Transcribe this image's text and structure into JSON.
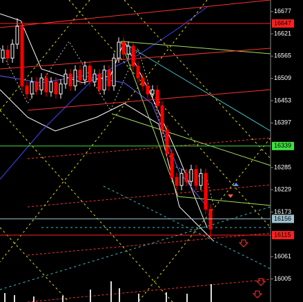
{
  "chart_data": {
    "type": "candlestick",
    "open": [
      16560,
      16580,
      16560,
      16595,
      16640,
      16490,
      16470,
      16500,
      16480,
      16510,
      16475,
      16500,
      16470,
      16495,
      16520,
      16490,
      16530,
      16505,
      16540,
      16500,
      16520,
      16480,
      16530,
      16490,
      16560,
      16600,
      16570,
      16590,
      16540,
      16510,
      16490,
      16470,
      16480,
      16440,
      16380,
      16320,
      16260,
      16240,
      16270,
      16250,
      16280,
      16240,
      16270,
      16180
    ],
    "high": [
      16592,
      16592,
      16607,
      16660,
      16652,
      16502,
      16512,
      16512,
      16522,
      16522,
      16512,
      16512,
      16507,
      16532,
      16532,
      16542,
      16542,
      16552,
      16552,
      16532,
      16532,
      16542,
      16542,
      16572,
      16612,
      16612,
      16602,
      16602,
      16552,
      16522,
      16502,
      16492,
      16492,
      16452,
      16392,
      16332,
      16272,
      16282,
      16282,
      16292,
      16292,
      16282,
      16282,
      16192
    ],
    "low": [
      16548,
      16548,
      16548,
      16583,
      16478,
      16458,
      16458,
      16468,
      16468,
      16463,
      16463,
      16458,
      16458,
      16483,
      16478,
      16478,
      16493,
      16493,
      16488,
      16488,
      16468,
      16468,
      16478,
      16478,
      16548,
      16558,
      16558,
      16528,
      16498,
      16478,
      16458,
      16458,
      16428,
      16368,
      16308,
      16248,
      16228,
      16228,
      16238,
      16238,
      16228,
      16228,
      16168,
      16108
    ],
    "close": [
      16580,
      16560,
      16595,
      16640,
      16490,
      16470,
      16500,
      16480,
      16510,
      16475,
      16500,
      16470,
      16495,
      16520,
      16490,
      16530,
      16505,
      16540,
      16500,
      16520,
      16480,
      16530,
      16490,
      16560,
      16600,
      16570,
      16590,
      16540,
      16510,
      16490,
      16470,
      16480,
      16440,
      16380,
      16320,
      16260,
      16240,
      16270,
      16250,
      16280,
      16240,
      16270,
      16180,
      16130
    ],
    "up_color": "#ffffff",
    "down_color": "#ff0000",
    "ylim": [
      15947,
      16706
    ],
    "yticks": [
      16677,
      16621,
      16565,
      16509,
      16453,
      16397,
      16285,
      16229,
      16173,
      16061,
      16005
    ],
    "levels": [
      {
        "value": 16647,
        "color": "#ff2020"
      },
      {
        "value": 16339,
        "color": "#40e040"
      },
      {
        "value": 16156,
        "color": "#9fc4d0"
      },
      {
        "value": 16115,
        "color": "#ff2020"
      }
    ]
  }
}
